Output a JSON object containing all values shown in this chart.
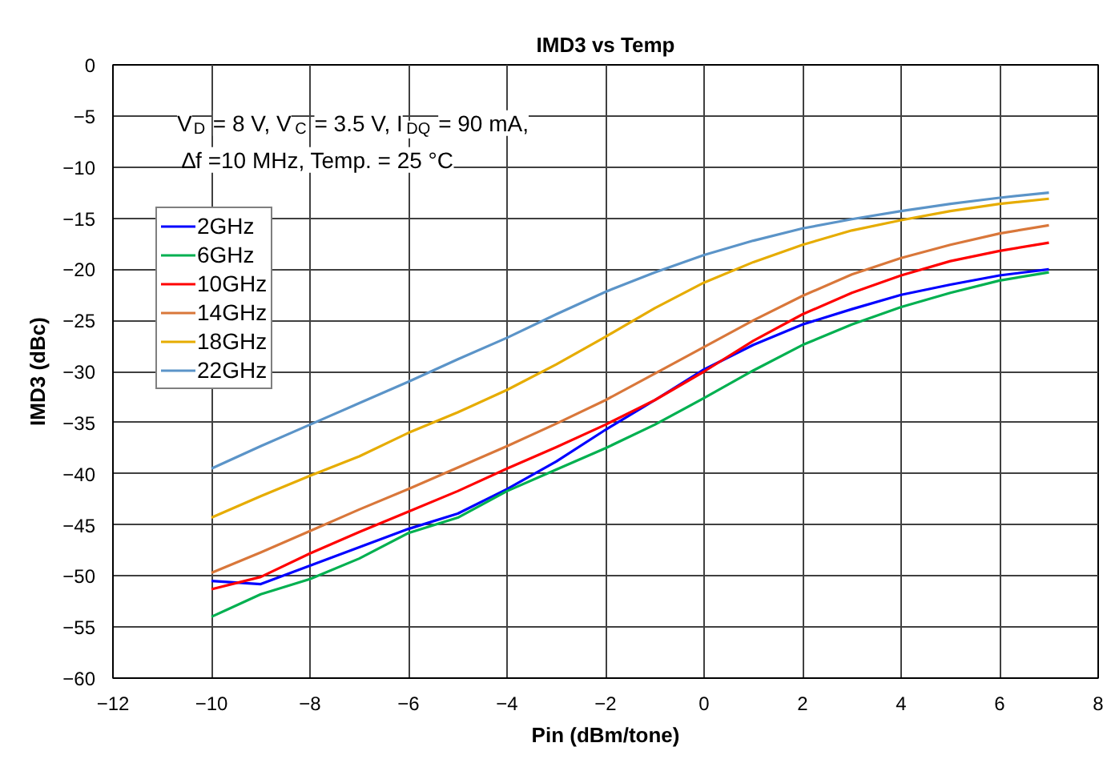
{
  "chart_data": {
    "type": "line",
    "title": "IMD3 vs Temp",
    "xlabel": "Pin (dBm/tone)",
    "ylabel": "IMD3 (dBc)",
    "annotations": [
      "V$_{D}$ = 8 V, V$_{C}$ = 3.5 V, I$_{DQ}$ = 90 mA,\n∆f =10 MHz, Temp. = 25 °C"
    ],
    "x": [
      -10,
      -9,
      -8,
      -7,
      -6,
      -5,
      -4,
      -3,
      -2,
      -1,
      0,
      1,
      2,
      3,
      4,
      5,
      6,
      7
    ],
    "series": [
      {
        "name": "2GHz",
        "color": "#0000ff",
        "values": [
          -50.5,
          -50.8,
          -49,
          -47.2,
          -45.4,
          -43.9,
          -41.5,
          -38.8,
          -35.7,
          -32.8,
          -29.8,
          -27.4,
          -25.4,
          -23.9,
          -22.5,
          -21.5,
          -20.6,
          -20
        ]
      },
      {
        "name": "6GHz",
        "color": "#00b050",
        "values": [
          -54,
          -51.8,
          -50.3,
          -48.3,
          -45.8,
          -44.3,
          -41.7,
          -39.6,
          -37.5,
          -35.2,
          -32.6,
          -29.9,
          -27.4,
          -25.4,
          -23.7,
          -22.3,
          -21.1,
          -20.3
        ]
      },
      {
        "name": "10GHz",
        "color": "#ff0000",
        "values": [
          -51.3,
          -50.1,
          -47.8,
          -45.7,
          -43.7,
          -41.7,
          -39.5,
          -37.4,
          -35.2,
          -32.8,
          -30,
          -27,
          -24.4,
          -22.3,
          -20.6,
          -19.2,
          -18.2,
          -17.4
        ]
      },
      {
        "name": "14GHz",
        "color": "#d9773a",
        "values": [
          -49.7,
          -47.7,
          -45.6,
          -43.5,
          -41.5,
          -39.4,
          -37.3,
          -35.1,
          -32.8,
          -30.2,
          -27.6,
          -25,
          -22.6,
          -20.5,
          -18.9,
          -17.6,
          -16.5,
          -15.7
        ]
      },
      {
        "name": "18GHz",
        "color": "#e6ac00",
        "values": [
          -44.3,
          -42.2,
          -40.2,
          -38.3,
          -36,
          -34,
          -31.8,
          -29.3,
          -26.6,
          -23.8,
          -21.3,
          -19.3,
          -17.6,
          -16.2,
          -15.2,
          -14.3,
          -13.6,
          -13.1
        ]
      },
      {
        "name": "22GHz",
        "color": "#5b94c8",
        "values": [
          -39.5,
          -37.3,
          -35.2,
          -33.1,
          -31,
          -28.8,
          -26.7,
          -24.4,
          -22.2,
          -20.3,
          -18.6,
          -17.2,
          -16,
          -15.1,
          -14.3,
          -13.6,
          -13,
          -12.5
        ]
      }
    ],
    "xlim": [
      -12,
      8
    ],
    "xticks": [
      -12,
      -10,
      -8,
      -6,
      -4,
      -2,
      0,
      2,
      4,
      6,
      8
    ],
    "ylim": [
      -60,
      0
    ],
    "yticks": [
      -60,
      -55,
      -50,
      -45,
      -40,
      -35,
      -30,
      -25,
      -20,
      -15,
      -10,
      -5,
      0
    ],
    "grid": true,
    "legend": "top left",
    "marker": "none",
    "line_style": "solid"
  }
}
